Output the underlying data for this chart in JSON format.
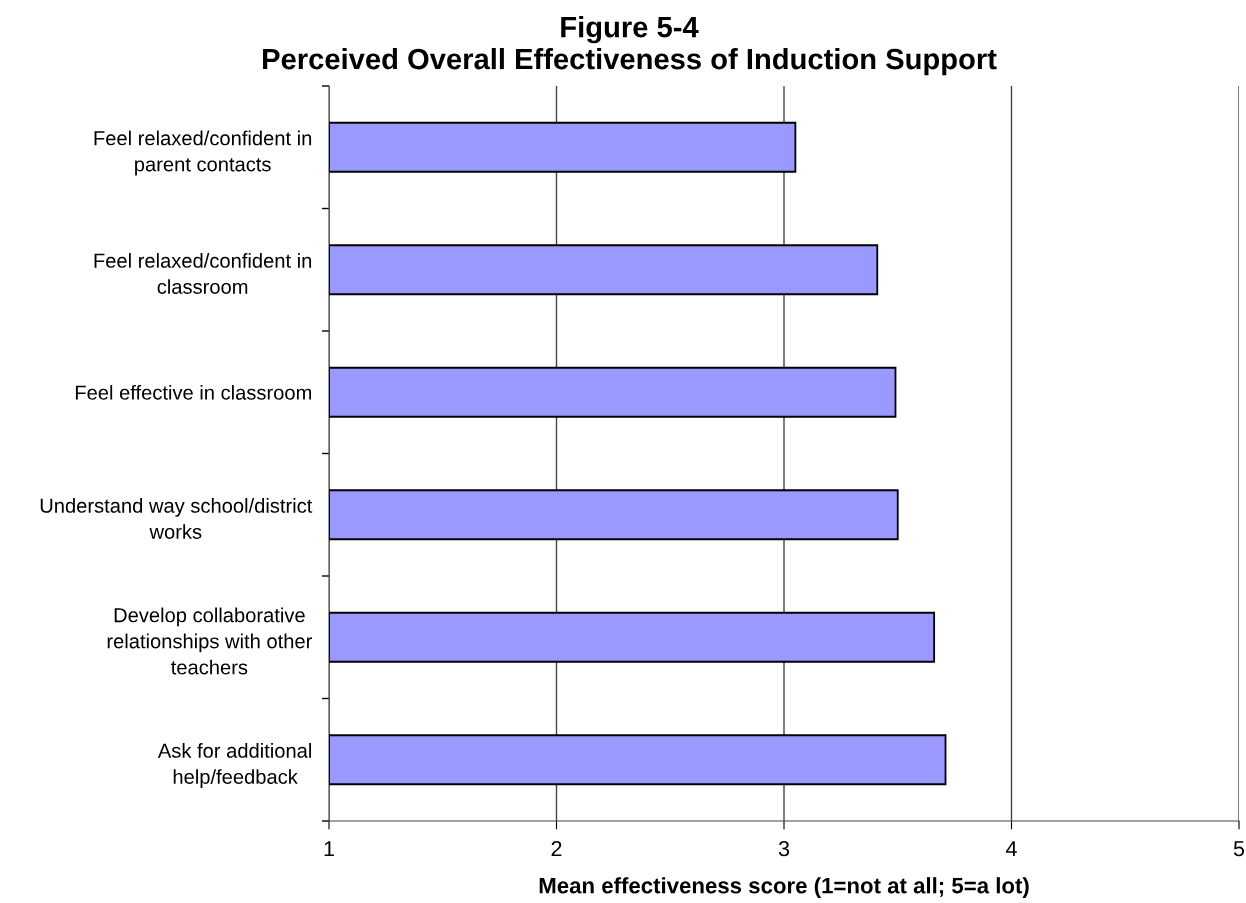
{
  "chart_data": {
    "type": "bar",
    "orientation": "horizontal",
    "title": "Figure 5-4\nPerceived Overall Effectiveness of Induction Support",
    "xlabel": "Mean effectiveness score (1=not at all; 5=a lot)",
    "categories": [
      "Feel relaxed/confident in\nparent contacts",
      "Feel relaxed/confident in\nclassroom",
      "Feel effective in classroom",
      "Understand way school/district\nworks",
      "Develop collaborative\nrelationships with other\nteachers",
      "Ask for additional\nhelp/feedback"
    ],
    "values": [
      3.05,
      3.41,
      3.49,
      3.5,
      3.66,
      3.71
    ],
    "color": "#9999ff",
    "xlim": [
      1,
      5
    ],
    "xticks": [
      1,
      2,
      3,
      4,
      5
    ],
    "grid": "x",
    "legend": false
  }
}
